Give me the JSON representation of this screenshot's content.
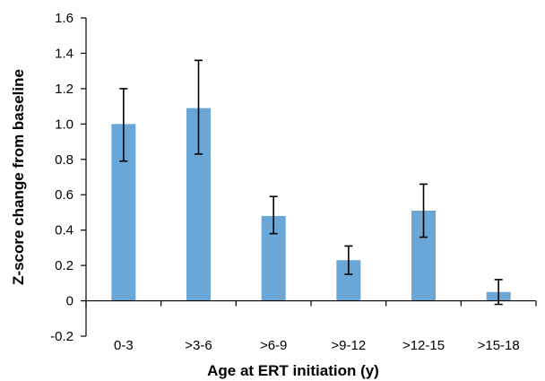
{
  "chart_data": {
    "type": "bar",
    "title": "",
    "xlabel": "Age at ERT initiation (y)",
    "ylabel": "Z-score change from baseline",
    "categories": [
      "0-3",
      ">3-6",
      ">6-9",
      ">9-12",
      ">12-15",
      ">15-18"
    ],
    "values": [
      1.0,
      1.09,
      0.48,
      0.23,
      0.51,
      0.05
    ],
    "error_bars": {
      "upper": [
        1.2,
        1.36,
        0.59,
        0.31,
        0.66,
        0.12
      ],
      "lower": [
        0.79,
        0.83,
        0.38,
        0.15,
        0.36,
        -0.02
      ]
    },
    "ylim": [
      -0.2,
      1.6
    ],
    "yticks": [
      "-0.2",
      "0",
      "0.2",
      "0.4",
      "0.6",
      "0.8",
      "1.0",
      "1.2",
      "1.4",
      "1.6"
    ],
    "ytick_values": [
      -0.2,
      0,
      0.2,
      0.4,
      0.6,
      0.8,
      1.0,
      1.2,
      1.4,
      1.6
    ],
    "grid": false,
    "legend": "none",
    "bar_color": "#6aa7d6",
    "axis_color": "#000000",
    "error_color": "#000000"
  }
}
